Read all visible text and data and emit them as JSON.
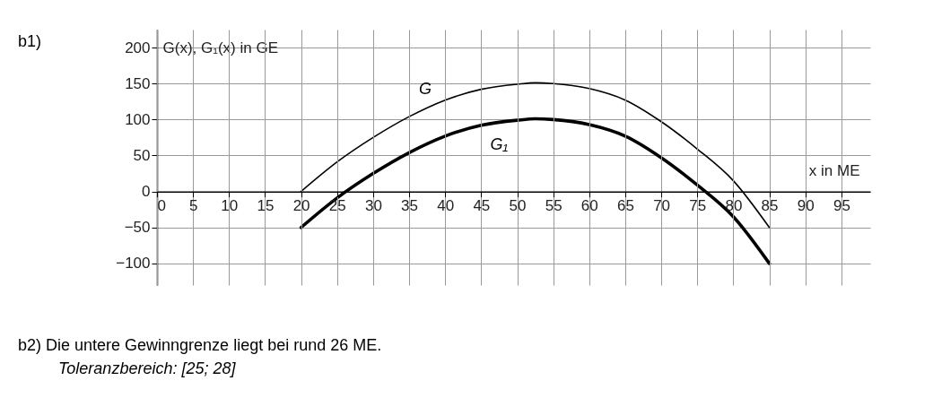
{
  "chart_data": {
    "type": "line",
    "title": "b1)",
    "xlabel": "x in ME",
    "ylabel": "G(x), G₁(x) in GE",
    "x": [
      20,
      25,
      30,
      35,
      40,
      45,
      50,
      52.5,
      55,
      60,
      65,
      70,
      75,
      80,
      85
    ],
    "series": [
      {
        "name": "G",
        "color": "#000000",
        "values": [
          0,
          41,
          75,
          104,
          127,
          142,
          149,
          151,
          150,
          143,
          127,
          97,
          59,
          15,
          -50
        ]
      },
      {
        "name": "G₁",
        "color": "#000000",
        "values": [
          -50,
          -9,
          25,
          54,
          77,
          92,
          99,
          101,
          100,
          93,
          77,
          47,
          9,
          -35,
          -100
        ]
      }
    ],
    "xlim": [
      0,
      99
    ],
    "xticks": [
      0,
      5,
      10,
      15,
      20,
      25,
      30,
      35,
      40,
      45,
      50,
      55,
      60,
      65,
      70,
      75,
      80,
      85,
      90,
      95
    ],
    "ylim": [
      -130,
      225
    ],
    "yticks": [
      {
        "value": -100,
        "label": "−100"
      },
      {
        "value": -50,
        "label": "−50"
      },
      0,
      50,
      100,
      150,
      200
    ],
    "grid": true,
    "legend": false,
    "marker": "none",
    "line_style": "solid",
    "annotations": [
      "b2) Die untere Gewinngrenze liegt bei rund 26 ME.",
      "Toleranzbereich: [25; 28]"
    ]
  }
}
